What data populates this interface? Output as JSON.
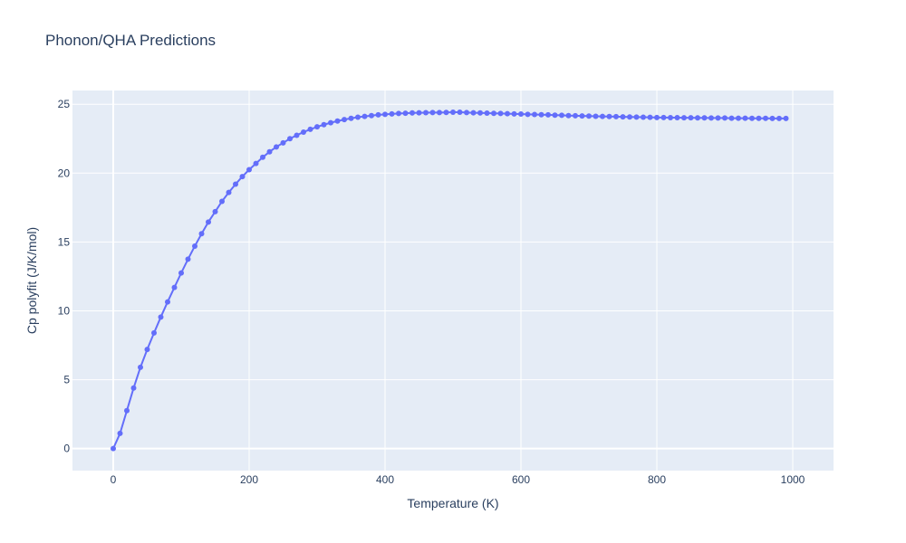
{
  "chart_data": {
    "type": "line",
    "title": "Phonon/QHA Predictions",
    "xlabel": "Temperature (K)",
    "ylabel": "Cp polyfit (J/K/mol)",
    "xlim": [
      -60,
      1060
    ],
    "ylim": [
      -1.6,
      26.0
    ],
    "x_ticks": [
      0,
      200,
      400,
      600,
      800,
      1000
    ],
    "y_ticks": [
      0,
      5,
      10,
      15,
      20,
      25
    ],
    "grid": true,
    "legend": "none",
    "series": [
      {
        "mode": "lines+markers",
        "color": "#636efa",
        "x": [
          0,
          10,
          20,
          30,
          40,
          50,
          60,
          70,
          80,
          90,
          100,
          110,
          120,
          130,
          140,
          150,
          160,
          170,
          180,
          190,
          200,
          210,
          220,
          230,
          240,
          250,
          260,
          270,
          280,
          290,
          300,
          310,
          320,
          330,
          340,
          350,
          360,
          370,
          380,
          390,
          400,
          410,
          420,
          430,
          440,
          450,
          460,
          470,
          480,
          490,
          500,
          510,
          520,
          530,
          540,
          550,
          560,
          570,
          580,
          590,
          600,
          610,
          620,
          630,
          640,
          650,
          660,
          670,
          680,
          690,
          700,
          710,
          720,
          730,
          740,
          750,
          760,
          770,
          780,
          790,
          800,
          810,
          820,
          830,
          840,
          850,
          860,
          870,
          880,
          890,
          900,
          910,
          920,
          930,
          940,
          950,
          960,
          970,
          980,
          990
        ],
        "y": [
          0.0,
          1.1,
          2.75,
          4.4,
          5.9,
          7.2,
          8.4,
          9.55,
          10.65,
          11.7,
          12.75,
          13.75,
          14.7,
          15.6,
          16.45,
          17.2,
          17.95,
          18.6,
          19.2,
          19.75,
          20.25,
          20.7,
          21.15,
          21.55,
          21.9,
          22.2,
          22.5,
          22.75,
          22.98,
          23.18,
          23.36,
          23.52,
          23.66,
          23.78,
          23.89,
          23.98,
          24.06,
          24.12,
          24.18,
          24.23,
          24.27,
          24.3,
          24.33,
          24.35,
          24.37,
          24.38,
          24.39,
          24.4,
          24.4,
          24.41,
          24.42,
          24.42,
          24.4,
          24.38,
          24.37,
          24.36,
          24.34,
          24.33,
          24.32,
          24.3,
          24.29,
          24.27,
          24.26,
          24.24,
          24.23,
          24.21,
          24.2,
          24.18,
          24.17,
          24.15,
          24.14,
          24.13,
          24.12,
          24.11,
          24.1,
          24.09,
          24.08,
          24.07,
          24.06,
          24.05,
          24.04,
          24.04,
          24.03,
          24.03,
          24.02,
          24.02,
          24.01,
          24.01,
          24.0,
          24.0,
          24.0,
          23.99,
          23.99,
          23.99,
          23.98,
          23.98,
          23.98,
          23.97,
          23.97,
          23.97
        ]
      }
    ]
  }
}
